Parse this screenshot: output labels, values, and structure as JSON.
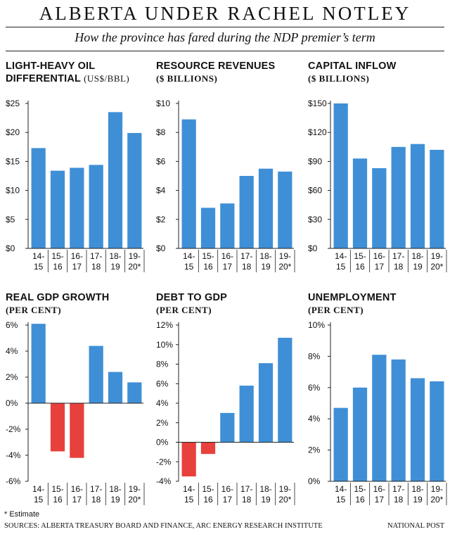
{
  "header": {
    "title": "ALBERTA UNDER RACHEL NOTLEY",
    "subtitle": "How the province has fared during the NDP premier’s term"
  },
  "footer": {
    "footnote": "* Estimate",
    "sources": "SOURCES: ALBERTA TREASURY BOARD AND FINANCE, ARC ENERGY RESEARCH INSTITUTE",
    "credit": "NATIONAL POST"
  },
  "colors": {
    "positive": "#3f8fd6",
    "negative": "#e8403c"
  },
  "chart_data": [
    {
      "type": "bar",
      "title_line1": "LIGHT-HEAVY OIL",
      "title_line2": "DIFFERENTIAL",
      "unit": "(US$/BBL)",
      "categories": [
        [
          "14-",
          "15"
        ],
        [
          "15-",
          "16"
        ],
        [
          "16-",
          "17"
        ],
        [
          "17-",
          "18"
        ],
        [
          "18-",
          "19"
        ],
        [
          "19-",
          "20*"
        ]
      ],
      "values": [
        17.3,
        13.4,
        13.9,
        14.4,
        23.5,
        19.9
      ],
      "ylim": [
        0,
        25
      ],
      "yticks": [
        0,
        5,
        10,
        15,
        20,
        25
      ],
      "ytick_labels": [
        "$0",
        "$5",
        "$10",
        "$15",
        "$20",
        "$25"
      ]
    },
    {
      "type": "bar",
      "title_line1": "RESOURCE REVENUES",
      "title_line2": "",
      "unit": "($ BILLIONS)",
      "categories": [
        [
          "14-",
          "15"
        ],
        [
          "15-",
          "16"
        ],
        [
          "16-",
          "17"
        ],
        [
          "17-",
          "18"
        ],
        [
          "18-",
          "19"
        ],
        [
          "19-",
          "20*"
        ]
      ],
      "values": [
        8.9,
        2.8,
        3.1,
        5.0,
        5.5,
        5.3
      ],
      "ylim": [
        0,
        10
      ],
      "yticks": [
        0,
        2,
        4,
        6,
        8,
        10
      ],
      "ytick_labels": [
        "$0",
        "$2",
        "$4",
        "$6",
        "$8",
        "$10"
      ]
    },
    {
      "type": "bar",
      "title_line1": "CAPITAL INFLOW",
      "title_line2": "",
      "unit": "($ BILLIONS)",
      "categories": [
        [
          "14-",
          "15"
        ],
        [
          "15-",
          "16"
        ],
        [
          "16-",
          "17"
        ],
        [
          "17-",
          "18"
        ],
        [
          "18-",
          "19"
        ],
        [
          "19-",
          "20*"
        ]
      ],
      "values": [
        150,
        93,
        83,
        105,
        108,
        102
      ],
      "ylim": [
        0,
        150
      ],
      "yticks": [
        0,
        30,
        60,
        90,
        120,
        150
      ],
      "ytick_labels": [
        "$0",
        "$30",
        "$60",
        "$90",
        "$120",
        "$150"
      ]
    },
    {
      "type": "bar",
      "title_line1": "REAL GDP GROWTH",
      "title_line2": "",
      "unit": "(PER CENT)",
      "categories": [
        [
          "14-",
          "15"
        ],
        [
          "15-",
          "16"
        ],
        [
          "16-",
          "17"
        ],
        [
          "17-",
          "18"
        ],
        [
          "18-",
          "19"
        ],
        [
          "19-",
          "20*"
        ]
      ],
      "values": [
        6.1,
        -3.7,
        -4.2,
        4.4,
        2.4,
        1.6
      ],
      "ylim": [
        -6,
        6
      ],
      "yticks": [
        -6,
        -4,
        -2,
        0,
        2,
        4,
        6
      ],
      "ytick_labels": [
        "-6%",
        "-4%",
        "-2%",
        "0%",
        "2%",
        "4%",
        "6%"
      ]
    },
    {
      "type": "bar",
      "title_line1": "DEBT TO GDP",
      "title_line2": "",
      "unit": "(PER CENT)",
      "categories": [
        [
          "14-",
          "15"
        ],
        [
          "15-",
          "16"
        ],
        [
          "16-",
          "17"
        ],
        [
          "17-",
          "18"
        ],
        [
          "18-",
          "19"
        ],
        [
          "19-",
          "20*"
        ]
      ],
      "values": [
        -3.5,
        -1.2,
        3.0,
        5.8,
        8.1,
        10.7
      ],
      "ylim": [
        -4,
        12
      ],
      "yticks": [
        -4,
        -2,
        0,
        2,
        4,
        6,
        8,
        10,
        12
      ],
      "ytick_labels": [
        "-4%",
        "-2%",
        "0%",
        "2%",
        "4%",
        "6%",
        "8%",
        "10%",
        "12%"
      ]
    },
    {
      "type": "bar",
      "title_line1": "UNEMPLOYMENT",
      "title_line2": "",
      "unit": "(PER CENT)",
      "categories": [
        [
          "14-",
          "15"
        ],
        [
          "15-",
          "16"
        ],
        [
          "16-",
          "17"
        ],
        [
          "17-",
          "18"
        ],
        [
          "18-",
          "19"
        ],
        [
          "19-",
          "20*"
        ]
      ],
      "values": [
        4.7,
        6.0,
        8.1,
        7.8,
        6.6,
        6.4
      ],
      "ylim": [
        0,
        10
      ],
      "yticks": [
        0,
        2,
        4,
        6,
        8,
        10
      ],
      "ytick_labels": [
        "0%",
        "2%",
        "4%",
        "6%",
        "8%",
        "10%"
      ]
    }
  ]
}
